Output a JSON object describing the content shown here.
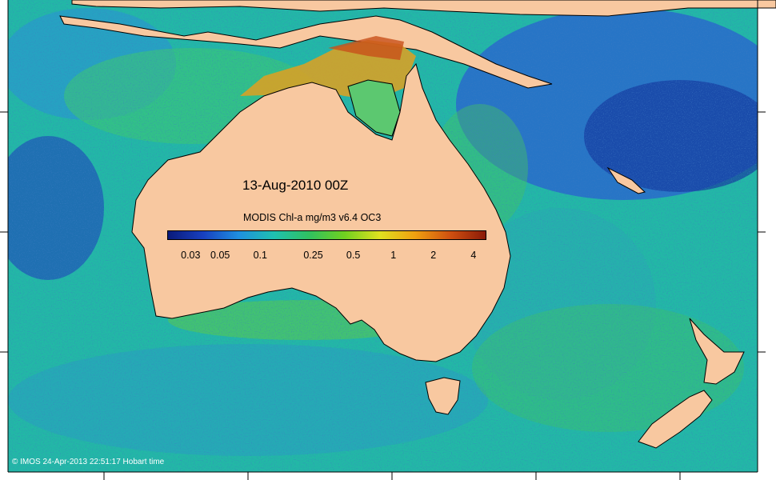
{
  "map": {
    "date_title": "13-Aug-2010 00Z",
    "colorbar_title": "MODIS Chl-a mg/m3 v6.4 OC3",
    "colorbar_labels": [
      "0.03",
      "0.05",
      "0.1",
      "0.25",
      "0.5",
      "1",
      "2",
      "4"
    ],
    "credit": "© IMOS 24-Apr-2013 22:51:17 Hobart time"
  },
  "colors": {
    "land": "#f8c8a0",
    "ocean_low": "#1040a0",
    "ocean_mid": "#20b0a0",
    "ocean_high": "#c04010",
    "colorbar_stops": [
      "#0a1a7a",
      "#1840c0",
      "#1f8fe0",
      "#1fc0b0",
      "#30c060",
      "#70d020",
      "#e0e020",
      "#f0a010",
      "#d05010",
      "#8a1a08"
    ]
  }
}
